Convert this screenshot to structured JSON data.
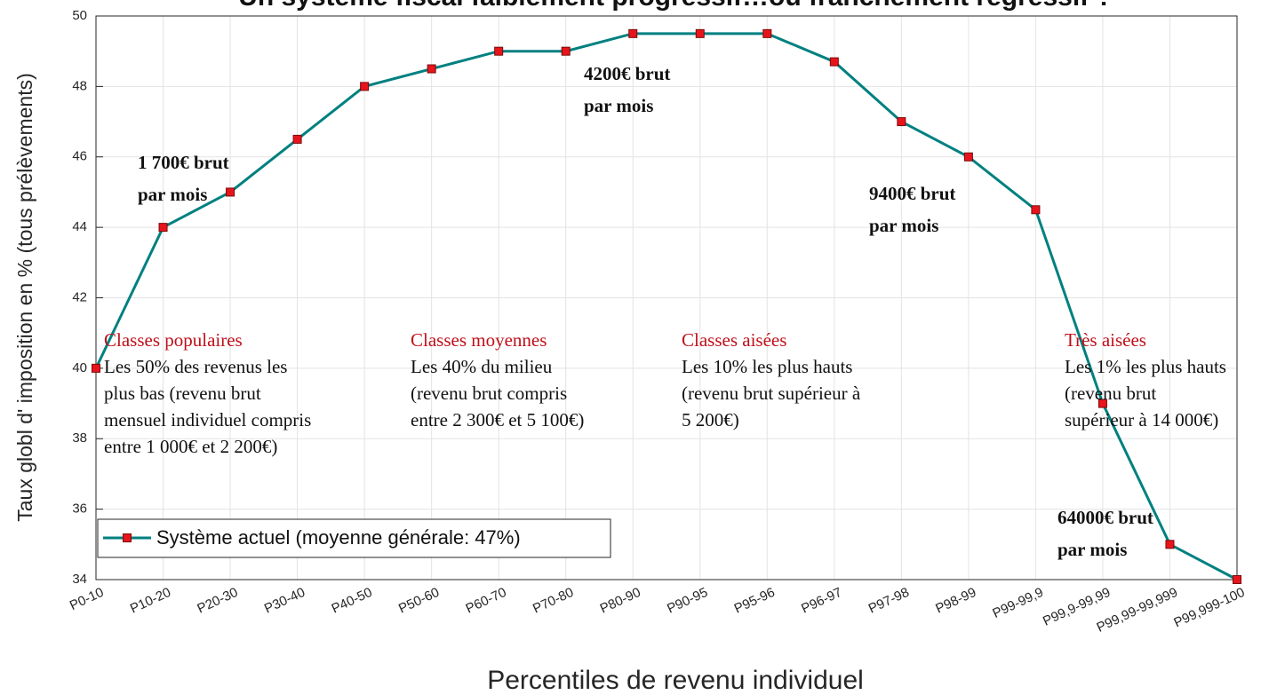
{
  "chart_data": {
    "type": "line",
    "title": "Un système fiscal faiblement progressif…ou franchement régressif ?",
    "ylabel": "Taux globl d' imposition en % (tous prélèvements)",
    "xlabel": "Percentiles de revenu individuel",
    "categories": [
      "P0-10",
      "P10-20",
      "P20-30",
      "P30-40",
      "P40-50",
      "P50-60",
      "P60-70",
      "P70-80",
      "P80-90",
      "P90-95",
      "P95-96",
      "P96-97",
      "P97-98",
      "P98-99",
      "P99-99,9",
      "P99,9-99,99",
      "P99,99-99,999",
      "P99,999-100"
    ],
    "series": [
      {
        "name": "Système actuel (moyenne générale: 47%)",
        "color": "#008080",
        "marker_color": "#e8141c",
        "values": [
          40,
          44,
          45,
          46.5,
          48,
          48.5,
          49,
          49,
          49.5,
          49.5,
          49.5,
          48.7,
          47,
          46,
          44.5,
          39,
          35,
          34
        ]
      }
    ],
    "ylim": [
      34,
      50
    ],
    "yticks": [
      34,
      36,
      38,
      40,
      42,
      44,
      46,
      48,
      50
    ],
    "grid": true,
    "legend": "lower left",
    "annotations": [
      {
        "lines": [
          "1 700€ brut",
          "par mois"
        ]
      },
      {
        "lines": [
          "4200€ brut",
          "par mois"
        ]
      },
      {
        "lines": [
          "9400€ brut",
          "par mois"
        ]
      },
      {
        "lines": [
          "64000€ brut",
          "par mois"
        ]
      }
    ],
    "classes": [
      {
        "title": "Classes populaires",
        "lines": [
          "Les 50% des revenus les",
          "plus bas (revenu brut",
          "mensuel individuel compris",
          "entre 1 000€ et 2 200€)"
        ]
      },
      {
        "title": "Classes moyennes",
        "lines": [
          "Les 40% du milieu",
          "(revenu brut compris",
          "entre 2 300€ et 5 100€)"
        ]
      },
      {
        "title": "Classes aisées",
        "lines": [
          "Les 10% les plus hauts",
          "(revenu brut supérieur à",
          "5 200€)"
        ]
      },
      {
        "title": "Très aisées",
        "lines": [
          "Les 1% les plus hauts",
          "(revenu brut",
          "supérieur à 14 000€)"
        ]
      }
    ]
  }
}
